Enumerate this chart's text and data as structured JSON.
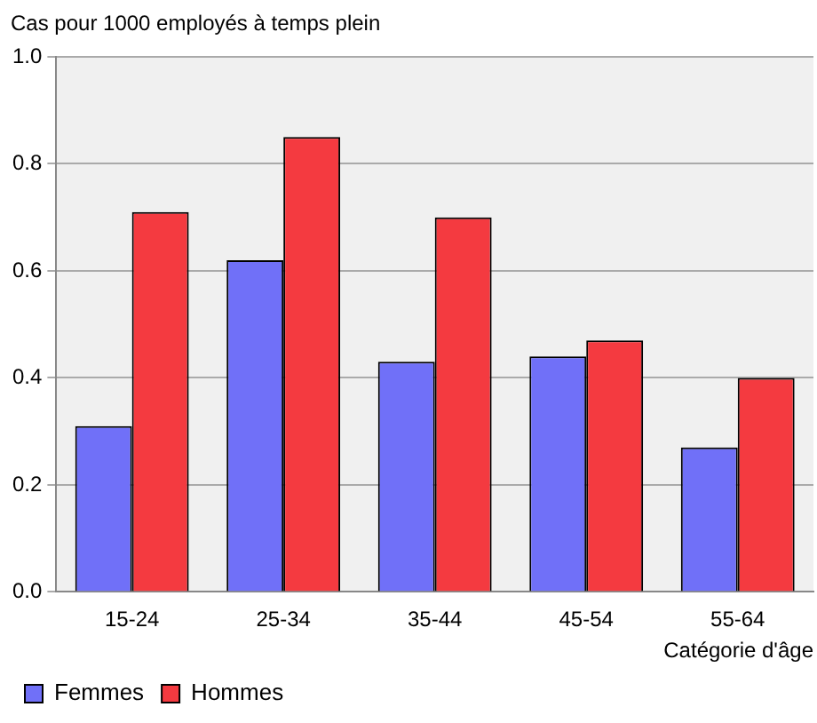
{
  "chart_data": {
    "type": "bar",
    "ylabel": "Cas pour 1000 employés à temps plein",
    "xlabel": "Catégorie d'âge",
    "categories": [
      "15-24",
      "25-34",
      "35-44",
      "45-54",
      "55-64"
    ],
    "series": [
      {
        "name": "Femmes",
        "color": "#7070f8",
        "values": [
          0.31,
          0.62,
          0.43,
          0.44,
          0.27
        ]
      },
      {
        "name": "Hommes",
        "color": "#f43a40",
        "values": [
          0.71,
          0.85,
          0.7,
          0.47,
          0.4
        ]
      }
    ],
    "ylim": [
      0,
      1.0
    ],
    "yticks": [
      {
        "value": 0,
        "label": "0.0"
      },
      {
        "value": 0.2,
        "label": "0.2"
      },
      {
        "value": 0.4,
        "label": "0.4"
      },
      {
        "value": 0.6,
        "label": "0.6"
      },
      {
        "value": 0.8,
        "label": "0.8"
      },
      {
        "value": 1.0,
        "label": "1.0"
      }
    ],
    "grid": "y",
    "legend": "bottom left"
  }
}
